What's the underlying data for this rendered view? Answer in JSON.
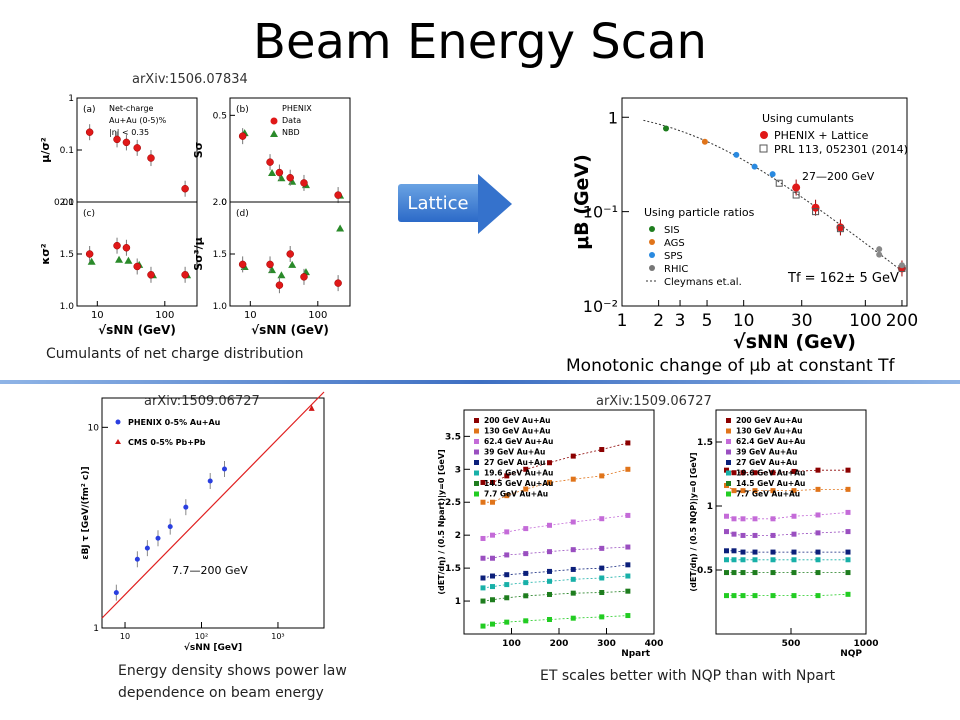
{
  "slide": {
    "title": "Beam Energy Scan",
    "lattice_label": "Lattice",
    "cite_top_left": "arXiv:1506.07834",
    "cite_bottom_left": "arXiv:1509.06727",
    "cite_bottom_right": "arXiv:1509.06727",
    "caption_top_left": "Cumulants of net charge distribution",
    "caption_top_right": "Monotonic change of μb at constant Tf",
    "caption_bottom_left_1": "Energy density shows power law",
    "caption_bottom_left_2": "dependence on beam energy",
    "caption_bottom_right": "ET scales better with NQP than with Npart",
    "annot_range_top": "27—200 GeV",
    "annot_tf": "Tf = 162± 5 GeV",
    "annot_range_bottom": "7.7—200 GeV"
  },
  "chart_data": [
    {
      "type": "scatter",
      "panels": [
        {
          "label": "(a)",
          "ylabel": "μ/σ²",
          "legend": [
            "Net-charge",
            "Au+Au (0-5)%",
            "|η| < 0.35"
          ],
          "x": [
            7.7,
            19.6,
            27,
            39,
            62.4,
            200
          ],
          "data": [
            0.22,
            0.16,
            0.14,
            0.11,
            0.07,
            0.018
          ],
          "ylim_log": [
            0.01,
            1
          ]
        },
        {
          "label": "(b)",
          "ylabel": "Sσ",
          "legend": [
            "PHENIX",
            "Data",
            "NBD"
          ],
          "x": [
            7.7,
            19.6,
            27,
            39,
            62.4,
            200
          ],
          "data": [
            0.38,
            0.23,
            0.17,
            0.14,
            0.11,
            0.04
          ],
          "nbd": [
            0.4,
            0.17,
            0.14,
            0.12,
            0.1,
            0.04
          ]
        },
        {
          "label": "(c)",
          "ylabel": "κσ²",
          "x": [
            7.7,
            19.6,
            27,
            39,
            62.4,
            200
          ],
          "data": [
            1.5,
            1.58,
            1.56,
            1.38,
            1.3,
            1.3
          ],
          "nbd": [
            1.43,
            1.45,
            1.44,
            1.4,
            1.3,
            1.3
          ]
        },
        {
          "label": "(d)",
          "ylabel": "Sσ³/μ",
          "x": [
            7.7,
            19.6,
            27,
            39,
            62.4,
            200
          ],
          "data": [
            1.4,
            1.4,
            1.2,
            1.5,
            1.28,
            1.22
          ],
          "nbd": [
            1.38,
            1.35,
            1.3,
            1.4,
            1.33,
            1.75
          ]
        }
      ],
      "xlabel": "√sNN (GeV)",
      "x_ticks": [
        "10",
        "100"
      ]
    },
    {
      "type": "scatter",
      "xlabel": "√sNN (GeV)",
      "ylabel": "μB (GeV)",
      "x_log": true,
      "y_log": true,
      "xlim": [
        1,
        220
      ],
      "ylim": [
        0.01,
        1.6
      ],
      "x_ticks": [
        "1",
        "2",
        "3",
        "5",
        "10",
        "30",
        "100",
        "200"
      ],
      "y_ticks": [
        "1",
        "10⁻¹",
        "10⁻²"
      ],
      "legend_top": [
        "Using cumulants",
        "PHENIX + Lattice",
        "PRL 113, 052301 (2014)"
      ],
      "legend_bottom": [
        "Using particle ratios",
        "SIS",
        "AGS",
        "SPS",
        "RHIC",
        "Cleymans et.al."
      ],
      "series": [
        {
          "name": "PHENIX + Lattice",
          "x": [
            27,
            39,
            62.4,
            200
          ],
          "y": [
            0.18,
            0.11,
            0.068,
            0.025
          ]
        },
        {
          "name": "PRL 113, 052301 (2014)",
          "x": [
            19.6,
            27,
            39,
            62.4,
            200
          ],
          "y": [
            0.2,
            0.15,
            0.1,
            0.066,
            0.025
          ]
        },
        {
          "name": "SIS",
          "x": [
            2.3
          ],
          "y": [
            0.76
          ]
        },
        {
          "name": "AGS",
          "x": [
            4.8
          ],
          "y": [
            0.55
          ]
        },
        {
          "name": "SPS",
          "x": [
            8.7,
            12.3,
            17.3
          ],
          "y": [
            0.4,
            0.3,
            0.25
          ]
        },
        {
          "name": "RHIC",
          "x": [
            130,
            130,
            200
          ],
          "y": [
            0.04,
            0.035,
            0.027
          ]
        }
      ]
    },
    {
      "type": "scatter",
      "xlabel": "√sNN [GeV]",
      "ylabel": "εBJ τ [GeV/(fm² c)]",
      "x_log": true,
      "y_log": true,
      "xlim": [
        5,
        4000
      ],
      "ylim": [
        1,
        14
      ],
      "x_ticks": [
        "10",
        "10²",
        "10³"
      ],
      "y_ticks": [
        "1",
        "10"
      ],
      "series": [
        {
          "name": "PHENIX 0-5% Au+Au",
          "x": [
            7.7,
            14.5,
            19.6,
            27,
            39,
            62.4,
            130,
            200
          ],
          "y": [
            1.5,
            2.2,
            2.5,
            2.8,
            3.2,
            4.0,
            5.4,
            6.2
          ]
        },
        {
          "name": "CMS 0-5% Pb+Pb",
          "x": [
            2760
          ],
          "y": [
            12.5
          ]
        }
      ]
    },
    {
      "type": "scatter",
      "panels": [
        {
          "xlabel": "Npart",
          "ylabel": "(dET/dη) / (0.5 Npart)|y=0 [GeV]",
          "xlim": [
            0,
            400
          ],
          "ylim": [
            0.5,
            3.9
          ],
          "x_ticks": [
            "100",
            "200",
            "300",
            "400"
          ],
          "y_ticks": [
            "1",
            "1.5",
            "2",
            "2.5",
            "3",
            "3.5"
          ]
        },
        {
          "xlabel": "NQP",
          "ylabel": "(dET/dη) / (0.5 NQP)|y=0 [GeV]",
          "xlim": [
            0,
            1000
          ],
          "ylim": [
            0,
            1.75
          ],
          "x_ticks": [
            "500",
            "1000"
          ],
          "y_ticks": [
            "0.5",
            "1",
            "1.5"
          ]
        }
      ],
      "series": [
        {
          "name": "200 GeV Au+Au",
          "left": [
            2.8,
            2.8,
            2.9,
            3.0,
            3.1,
            3.2,
            3.3,
            3.4
          ],
          "right": [
            1.28,
            1.26,
            1.26,
            1.26,
            1.26,
            1.27,
            1.28,
            1.28
          ]
        },
        {
          "name": "130 GeV Au+Au",
          "left": [
            2.5,
            2.5,
            2.6,
            2.7,
            2.8,
            2.85,
            2.9,
            3.0
          ],
          "right": [
            1.16,
            1.12,
            1.12,
            1.12,
            1.12,
            1.12,
            1.13,
            1.13
          ]
        },
        {
          "name": "62.4 GeV Au+Au",
          "left": [
            1.95,
            2.0,
            2.05,
            2.1,
            2.15,
            2.2,
            2.25,
            2.3
          ],
          "right": [
            0.92,
            0.9,
            0.9,
            0.9,
            0.9,
            0.92,
            0.93,
            0.95
          ]
        },
        {
          "name": "39 GeV Au+Au",
          "left": [
            1.65,
            1.65,
            1.7,
            1.72,
            1.75,
            1.78,
            1.8,
            1.82
          ],
          "right": [
            0.8,
            0.78,
            0.77,
            0.77,
            0.77,
            0.78,
            0.79,
            0.8
          ]
        },
        {
          "name": "27 GeV Au+Au",
          "left": [
            1.35,
            1.38,
            1.4,
            1.42,
            1.45,
            1.48,
            1.5,
            1.55
          ],
          "right": [
            0.65,
            0.65,
            0.64,
            0.64,
            0.64,
            0.64,
            0.64,
            0.64
          ]
        },
        {
          "name": "19.6 GeV Au+Au",
          "left": [
            1.2,
            1.22,
            1.25,
            1.28,
            1.3,
            1.33,
            1.35,
            1.38
          ],
          "right": [
            0.58,
            0.58,
            0.58,
            0.58,
            0.58,
            0.58,
            0.58,
            0.58
          ]
        },
        {
          "name": "14.5 GeV Au+Au",
          "left": [
            1.0,
            1.02,
            1.05,
            1.08,
            1.1,
            1.12,
            1.13,
            1.15
          ],
          "right": [
            0.48,
            0.48,
            0.48,
            0.48,
            0.48,
            0.48,
            0.48,
            0.48
          ]
        },
        {
          "name": "7.7 GeV Au+Au",
          "left": [
            0.62,
            0.65,
            0.68,
            0.7,
            0.72,
            0.74,
            0.76,
            0.78
          ],
          "right": [
            0.3,
            0.3,
            0.3,
            0.3,
            0.3,
            0.3,
            0.3,
            0.31
          ]
        }
      ],
      "colors": [
        "#8b0000",
        "#e0741a",
        "#c46bd8",
        "#9a4fc0",
        "#0b1f7a",
        "#18b0a8",
        "#1e7d1e",
        "#22cc22"
      ]
    }
  ]
}
